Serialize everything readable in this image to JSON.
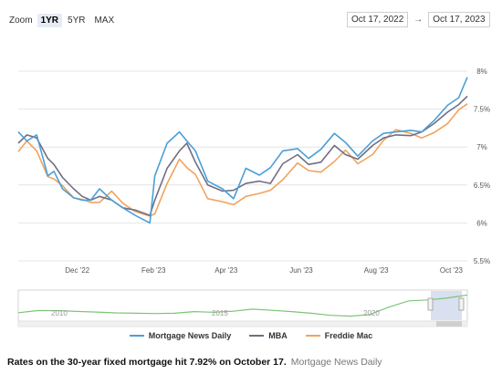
{
  "toolbar": {
    "zoom_label": "Zoom",
    "zoom_options": [
      "1YR",
      "5YR",
      "MAX"
    ],
    "zoom_active": "1YR",
    "range_from": "Oct 17, 2022",
    "range_arrow": "→",
    "range_to": "Oct 17, 2023"
  },
  "legend": [
    {
      "name": "Mortgage News Daily",
      "color": "#4a9fd8"
    },
    {
      "name": "MBA",
      "color": "#6f6f82"
    },
    {
      "name": "Freddie Mac",
      "color": "#f0a35e"
    }
  ],
  "navigator": {
    "year_labels": [
      "2010",
      "2015",
      "2020"
    ],
    "color": "#7cc576"
  },
  "caption": {
    "headline": "Rates on the 30-year fixed mortgage hit 7.92% on October 17.",
    "source": "Mortgage News Daily"
  },
  "chart_data": {
    "type": "line",
    "x_ticks": [
      "Dec '22",
      "Feb '23",
      "Apr '23",
      "Jun '23",
      "Aug '23",
      "Oct '23"
    ],
    "y_ticks": [
      "5.5%",
      "6%",
      "6.5%",
      "7%",
      "7.5%",
      "8%"
    ],
    "ylim": [
      5.5,
      8.0
    ],
    "xlim": [
      "Oct 17, 2022",
      "Oct 17, 2023"
    ],
    "grid": true,
    "legend_position": "bottom",
    "x": [
      "2022-10-17",
      "2022-10-24",
      "2022-11-01",
      "2022-11-10",
      "2022-11-15",
      "2022-11-22",
      "2022-12-01",
      "2022-12-08",
      "2022-12-15",
      "2022-12-22",
      "2023-01-01",
      "2023-01-10",
      "2023-01-20",
      "2023-02-01",
      "2023-02-05",
      "2023-02-15",
      "2023-02-25",
      "2023-03-03",
      "2023-03-10",
      "2023-03-20",
      "2023-04-01",
      "2023-04-10",
      "2023-04-20",
      "2023-05-01",
      "2023-05-10",
      "2023-05-20",
      "2023-06-01",
      "2023-06-10",
      "2023-06-20",
      "2023-07-01",
      "2023-07-10",
      "2023-07-20",
      "2023-08-01",
      "2023-08-10",
      "2023-08-20",
      "2023-09-01",
      "2023-09-10",
      "2023-09-20",
      "2023-10-01",
      "2023-10-10",
      "2023-10-17"
    ],
    "series": [
      {
        "name": "Mortgage News Daily",
        "values": [
          7.2,
          7.08,
          7.16,
          6.62,
          6.68,
          6.45,
          6.33,
          6.3,
          6.3,
          6.45,
          6.3,
          6.2,
          6.1,
          6.0,
          6.62,
          7.05,
          7.2,
          7.08,
          6.95,
          6.55,
          6.45,
          6.32,
          6.72,
          6.63,
          6.73,
          6.95,
          6.98,
          6.85,
          6.97,
          7.18,
          7.06,
          6.88,
          7.08,
          7.18,
          7.2,
          7.22,
          7.2,
          7.35,
          7.55,
          7.65,
          7.92
        ]
      },
      {
        "name": "MBA",
        "values": [
          7.05,
          7.16,
          7.12,
          6.85,
          6.77,
          6.6,
          6.45,
          6.35,
          6.3,
          6.35,
          6.3,
          6.2,
          6.17,
          6.1,
          6.3,
          6.72,
          6.95,
          7.05,
          6.8,
          6.5,
          6.42,
          6.43,
          6.52,
          6.55,
          6.52,
          6.78,
          6.9,
          6.77,
          6.8,
          7.02,
          6.9,
          6.84,
          7.02,
          7.12,
          7.16,
          7.15,
          7.2,
          7.31,
          7.46,
          7.56,
          7.67
        ]
      },
      {
        "name": "Freddie Mac",
        "values": [
          6.94,
          7.08,
          6.95,
          6.61,
          6.58,
          6.49,
          6.33,
          6.31,
          6.27,
          6.27,
          6.42,
          6.26,
          6.15,
          6.09,
          6.12,
          6.52,
          6.84,
          6.73,
          6.64,
          6.32,
          6.28,
          6.24,
          6.35,
          6.39,
          6.43,
          6.57,
          6.79,
          6.69,
          6.67,
          6.81,
          6.96,
          6.78,
          6.9,
          7.09,
          7.23,
          7.18,
          7.12,
          7.19,
          7.31,
          7.49,
          7.57
        ]
      }
    ],
    "navigator_series": [
      3.65,
      4.15,
      4.15,
      3.95,
      3.8,
      3.6,
      3.5,
      3.45,
      3.5,
      3.9,
      3.75,
      4.0,
      4.5,
      4.2,
      3.9,
      3.5,
      3.0,
      2.8,
      3.2,
      5.0,
      6.5,
      6.7,
      7.2,
      7.9
    ]
  }
}
